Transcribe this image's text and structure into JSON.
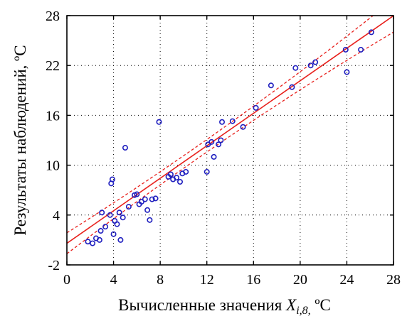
{
  "chart_data": {
    "type": "scatter",
    "title": "",
    "xlabel": {
      "prefix": "Вычисленные значения ",
      "var": "X",
      "sub": "i,8,",
      "unit": "  ºC"
    },
    "ylabel": "Результаты наблюдений,  ºC",
    "xlim": [
      0,
      28
    ],
    "ylim": [
      -2,
      28
    ],
    "xticks": [
      0,
      4,
      8,
      12,
      16,
      20,
      24,
      28
    ],
    "yticks": [
      -2,
      4,
      10,
      16,
      22,
      28
    ],
    "xtick_labels": [
      "0",
      "4",
      "8",
      "12",
      "16",
      "20",
      "24",
      "28"
    ],
    "ytick_labels": [
      "-2",
      "4",
      "10",
      "16",
      "22",
      "28"
    ],
    "grid": true,
    "grid_style": "dotted",
    "colors": {
      "points": "#1f1fbf",
      "fit_line": "#e8201c",
      "confidence_band": "#e8201c",
      "axes": "#000000"
    },
    "series": [
      {
        "values": [
          [
            1.8,
            0.8
          ],
          [
            2.2,
            0.6
          ],
          [
            2.5,
            1.2
          ],
          [
            2.8,
            1.0
          ],
          [
            2.9,
            2.1
          ],
          [
            3.0,
            4.3
          ],
          [
            3.3,
            2.6
          ],
          [
            3.7,
            4.0
          ],
          [
            3.8,
            7.8
          ],
          [
            3.9,
            8.3
          ],
          [
            4.0,
            1.7
          ],
          [
            4.1,
            3.3
          ],
          [
            4.3,
            2.9
          ],
          [
            4.5,
            4.3
          ],
          [
            4.6,
            1.0
          ],
          [
            4.8,
            3.7
          ],
          [
            5.0,
            12.1
          ],
          [
            5.3,
            5.0
          ],
          [
            5.8,
            6.4
          ],
          [
            6.0,
            6.5
          ],
          [
            6.2,
            5.3
          ],
          [
            6.4,
            5.6
          ],
          [
            6.7,
            5.9
          ],
          [
            6.9,
            4.6
          ],
          [
            7.1,
            3.4
          ],
          [
            7.3,
            5.9
          ],
          [
            7.6,
            6.0
          ],
          [
            7.9,
            15.2
          ],
          [
            8.7,
            8.6
          ],
          [
            8.9,
            8.9
          ],
          [
            9.1,
            8.3
          ],
          [
            9.4,
            8.5
          ],
          [
            9.7,
            8.0
          ],
          [
            9.9,
            9.0
          ],
          [
            10.2,
            9.2
          ],
          [
            12.0,
            9.2
          ],
          [
            12.1,
            12.5
          ],
          [
            12.4,
            12.8
          ],
          [
            12.6,
            11.0
          ],
          [
            13.0,
            12.5
          ],
          [
            13.2,
            13.0
          ],
          [
            13.3,
            15.2
          ],
          [
            14.2,
            15.3
          ],
          [
            15.1,
            14.6
          ],
          [
            16.2,
            16.9
          ],
          [
            17.5,
            19.6
          ],
          [
            19.3,
            19.4
          ],
          [
            19.6,
            21.7
          ],
          [
            20.9,
            22.0
          ],
          [
            21.3,
            22.4
          ],
          [
            23.9,
            23.9
          ],
          [
            24.0,
            21.2
          ],
          [
            25.2,
            23.9
          ],
          [
            26.1,
            26.0
          ]
        ]
      }
    ],
    "fit_line": {
      "intercept": 0.6,
      "slope": 0.978
    },
    "band": {
      "halfwidth_at_mean": 0.75,
      "mean_x": 11.0,
      "growth": 0.0042
    }
  }
}
